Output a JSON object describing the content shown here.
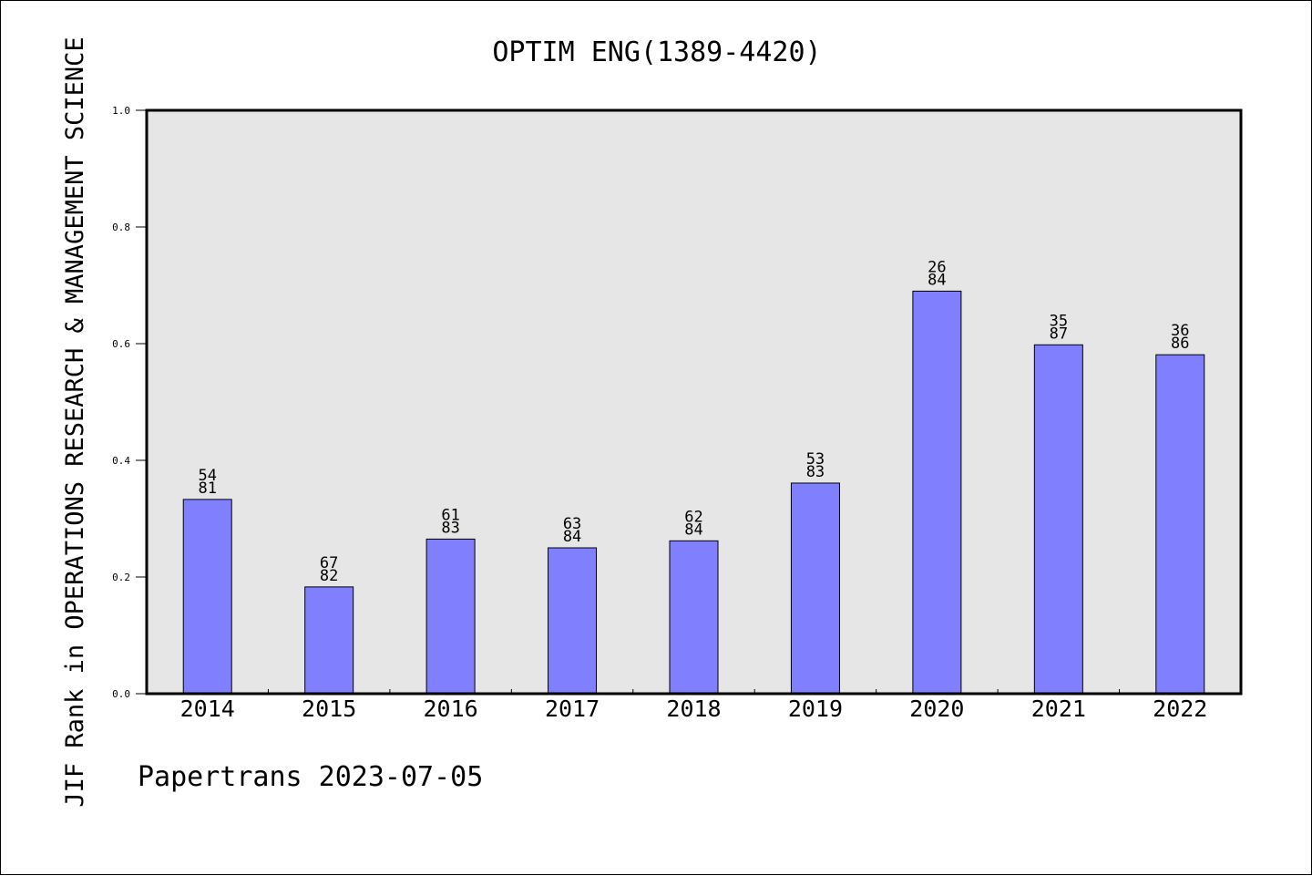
{
  "chart_data": {
    "type": "bar",
    "title": "OPTIM ENG(1389-4420)",
    "xlabel": "",
    "ylabel": "JIF Rank in OPERATIONS RESEARCH & MANAGEMENT SCIENCE",
    "ylim": [
      0.0,
      1.0
    ],
    "yticks": [
      "0.0",
      "0.2",
      "0.4",
      "0.6",
      "0.8",
      "1.0"
    ],
    "categories": [
      "2014",
      "2015",
      "2016",
      "2017",
      "2018",
      "2019",
      "2020",
      "2021",
      "2022"
    ],
    "values": [
      0.333,
      0.183,
      0.265,
      0.25,
      0.262,
      0.361,
      0.69,
      0.598,
      0.581
    ],
    "labels": [
      {
        "rank": "54",
        "total": "81"
      },
      {
        "rank": "67",
        "total": "82"
      },
      {
        "rank": "61",
        "total": "83"
      },
      {
        "rank": "63",
        "total": "84"
      },
      {
        "rank": "62",
        "total": "84"
      },
      {
        "rank": "53",
        "total": "83"
      },
      {
        "rank": "26",
        "total": "84"
      },
      {
        "rank": "35",
        "total": "87"
      },
      {
        "rank": "36",
        "total": "86"
      }
    ],
    "bar_color": "#8080ff",
    "plot_background": "#e6e6e6",
    "grid": false,
    "legend": "none"
  },
  "footer": {
    "note": "Papertrans 2023-07-05"
  }
}
